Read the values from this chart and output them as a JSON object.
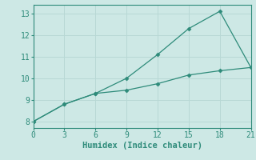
{
  "line1_x": [
    0,
    3,
    6,
    9,
    12,
    15,
    18,
    21
  ],
  "line1_y": [
    8.0,
    8.8,
    9.3,
    10.0,
    11.1,
    12.3,
    13.1,
    10.5
  ],
  "line2_x": [
    0,
    3,
    6,
    9,
    12,
    15,
    18,
    21
  ],
  "line2_y": [
    8.0,
    8.8,
    9.3,
    9.45,
    9.75,
    10.15,
    10.35,
    10.5
  ],
  "line_color": "#2e8b7a",
  "xlabel": "Humidex (Indice chaleur)",
  "xlim": [
    0,
    21
  ],
  "ylim": [
    7.7,
    13.4
  ],
  "xticks": [
    0,
    3,
    6,
    9,
    12,
    15,
    18,
    21
  ],
  "yticks": [
    8,
    9,
    10,
    11,
    12,
    13
  ],
  "background_color": "#cde8e5",
  "grid_color": "#b8d8d5",
  "xlabel_fontsize": 7.5,
  "tick_fontsize": 7
}
